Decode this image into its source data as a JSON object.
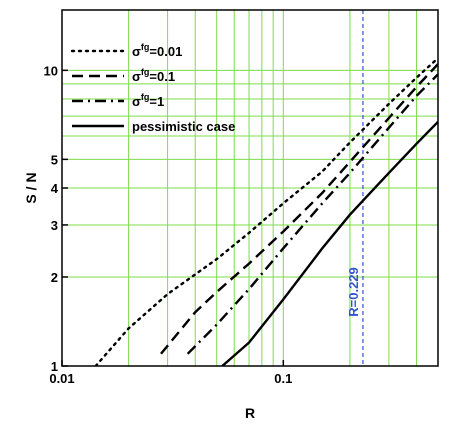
{
  "chart_data": {
    "type": "line",
    "xlabel": "R",
    "ylabel": "S / N",
    "xscale": "log",
    "yscale": "log",
    "xlim": [
      0.01,
      0.5
    ],
    "ylim": [
      1,
      16
    ],
    "grid": true,
    "grid_color": "#7ddc4a",
    "legend_position": "top-left",
    "x_ticks": [
      {
        "value": 0.01,
        "label": "0.01"
      },
      {
        "value": 0.1,
        "label": "0.1"
      }
    ],
    "y_ticks": [
      {
        "value": 1,
        "label": "1"
      },
      {
        "value": 2,
        "label": "2"
      },
      {
        "value": 3,
        "label": "3"
      },
      {
        "value": 4,
        "label": "4"
      },
      {
        "value": 5,
        "label": "5"
      },
      {
        "value": 10,
        "label": "10"
      }
    ],
    "x_grid": [
      0.02,
      0.03,
      0.04,
      0.05,
      0.06,
      0.07,
      0.08,
      0.09,
      0.1,
      0.2,
      0.3,
      0.4
    ],
    "y_grid": [
      2,
      3,
      4,
      5,
      6,
      7,
      8,
      9,
      10
    ],
    "series": [
      {
        "name_base": "σ",
        "name_sup": "fg",
        "name_suffix": "=0.01",
        "style": "dotted",
        "x": [
          0.0142,
          0.02,
          0.03,
          0.05,
          0.07,
          0.1,
          0.15,
          0.2,
          0.3,
          0.4,
          0.5
        ],
        "y": [
          1.0,
          1.34,
          1.75,
          2.3,
          2.82,
          3.55,
          4.55,
          5.7,
          7.7,
          9.45,
          11.0
        ]
      },
      {
        "name_base": "σ",
        "name_sup": "fg",
        "name_suffix": "=0.1",
        "style": "dashed",
        "x": [
          0.028,
          0.04,
          0.05,
          0.07,
          0.1,
          0.15,
          0.2,
          0.3,
          0.4,
          0.5
        ],
        "y": [
          1.1,
          1.52,
          1.78,
          2.22,
          2.85,
          3.85,
          4.9,
          6.9,
          8.8,
          10.5
        ]
      },
      {
        "name_base": "σ",
        "name_sup": "fg",
        "name_suffix": "=1",
        "style": "dashdot",
        "x": [
          0.037,
          0.05,
          0.07,
          0.1,
          0.15,
          0.2,
          0.3,
          0.4,
          0.5
        ],
        "y": [
          1.1,
          1.38,
          1.82,
          2.5,
          3.55,
          4.5,
          6.4,
          8.2,
          9.7
        ]
      },
      {
        "name": "pessimistic case",
        "style": "solid",
        "x": [
          0.053,
          0.07,
          0.1,
          0.15,
          0.2,
          0.3,
          0.4,
          0.5
        ],
        "y": [
          1.0,
          1.2,
          1.68,
          2.5,
          3.25,
          4.5,
          5.65,
          6.7
        ]
      }
    ],
    "annotations": [
      {
        "type": "vline",
        "x": 0.229,
        "label": "R=0.229",
        "color": "#3355cc"
      }
    ]
  }
}
